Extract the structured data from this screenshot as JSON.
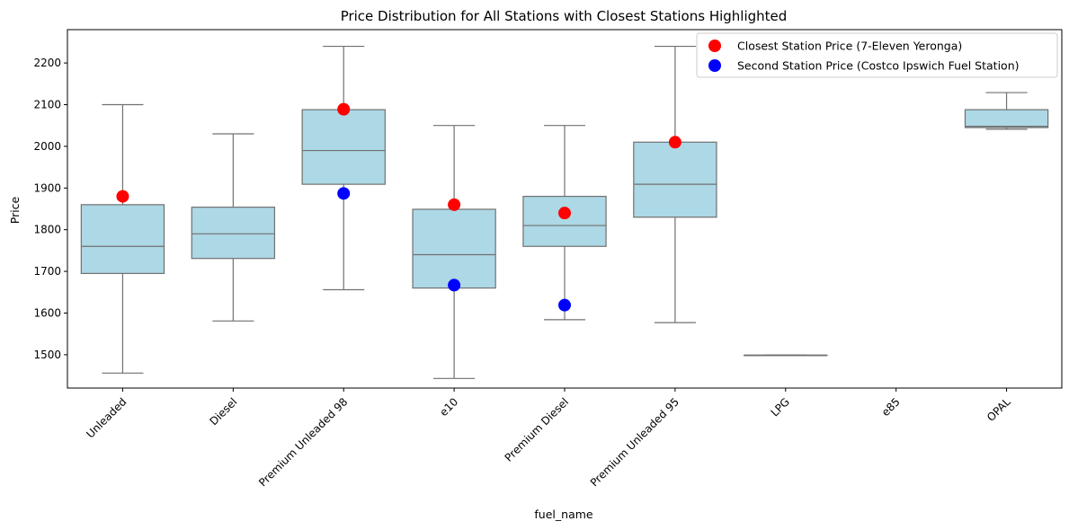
{
  "chart_data": {
    "type": "box",
    "title": "Price Distribution for All Stations with Closest Stations Highlighted",
    "xlabel": "fuel_name",
    "ylabel": "Price",
    "ylim": [
      1420,
      2280
    ],
    "yticks": [
      1500,
      1600,
      1700,
      1800,
      1900,
      2000,
      2100,
      2200
    ],
    "categories": [
      "Unleaded",
      "Diesel",
      "Premium Unleaded 98",
      "e10",
      "Premium Diesel",
      "Premium Unleaded 95",
      "LPG",
      "e85",
      "OPAL"
    ],
    "boxes": [
      {
        "category": "Unleaded",
        "whisker_low": 1456,
        "q1": 1695,
        "median": 1760,
        "q3": 1860,
        "whisker_high": 2100
      },
      {
        "category": "Diesel",
        "whisker_low": 1581,
        "q1": 1731,
        "median": 1790,
        "q3": 1854,
        "whisker_high": 2030
      },
      {
        "category": "Premium Unleaded 98",
        "whisker_low": 1656,
        "q1": 1909,
        "median": 1990,
        "q3": 2088,
        "whisker_high": 2240
      },
      {
        "category": "e10",
        "whisker_low": 1443,
        "q1": 1660,
        "median": 1740,
        "q3": 1849,
        "whisker_high": 2050
      },
      {
        "category": "Premium Diesel",
        "whisker_low": 1584,
        "q1": 1760,
        "median": 1810,
        "q3": 1880,
        "whisker_high": 2050
      },
      {
        "category": "Premium Unleaded 95",
        "whisker_low": 1577,
        "q1": 1830,
        "median": 1909,
        "q3": 2010,
        "whisker_high": 2240
      },
      {
        "category": "LPG",
        "whisker_low": 1499,
        "q1": 1499,
        "median": 1499,
        "q3": 1499,
        "whisker_high": 1499
      },
      {
        "category": "OPAL",
        "whisker_low": 2041,
        "q1": 2045,
        "median": 2048,
        "q3": 2088,
        "whisker_high": 2129
      }
    ],
    "series": [
      {
        "name": "Closest Station Price (7-Eleven Yeronga)",
        "color": "#ff0000",
        "points": [
          {
            "category": "Unleaded",
            "value": 1880
          },
          {
            "category": "Premium Unleaded 98",
            "value": 2089
          },
          {
            "category": "e10",
            "value": 1860
          },
          {
            "category": "Premium Diesel",
            "value": 1840
          },
          {
            "category": "Premium Unleaded 95",
            "value": 2010
          }
        ]
      },
      {
        "name": "Second Station Price (Costco Ipswich Fuel Station)",
        "color": "#0000ff",
        "points": [
          {
            "category": "Premium Unleaded 98",
            "value": 1887
          },
          {
            "category": "e10",
            "value": 1667
          },
          {
            "category": "Premium Diesel",
            "value": 1619
          }
        ]
      }
    ],
    "box_fill_color": "#add8e6",
    "box_line_color": "#707070",
    "legend_position": "top-right",
    "grid": false
  }
}
